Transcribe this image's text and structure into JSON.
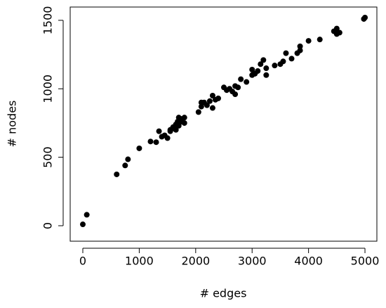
{
  "chart_data": {
    "type": "scatter",
    "xlabel": "# edges",
    "ylabel": "# nodes",
    "color": "#000000",
    "x": [
      0,
      70,
      600,
      750,
      800,
      1000,
      1200,
      1300,
      1350,
      1400,
      1450,
      1500,
      1550,
      1600,
      1620,
      1650,
      1680,
      1700,
      1700,
      1750,
      1750,
      1800,
      1800,
      1650,
      1550,
      2050,
      2100,
      2100,
      2150,
      2200,
      2250,
      2300,
      2300,
      2350,
      2400,
      2500,
      2550,
      2600,
      2650,
      2700,
      2700,
      2750,
      2800,
      2900,
      3000,
      3000,
      3050,
      3100,
      3150,
      3200,
      3250,
      3250,
      3400,
      3500,
      3550,
      3600,
      3700,
      3800,
      3850,
      3850,
      4000,
      4200,
      4450,
      4500,
      4550,
      4500,
      4980,
      5000
    ],
    "values": [
      10,
      80,
      375,
      440,
      485,
      565,
      615,
      610,
      690,
      650,
      660,
      640,
      700,
      720,
      710,
      740,
      760,
      730,
      790,
      780,
      760,
      790,
      750,
      700,
      690,
      830,
      870,
      900,
      900,
      880,
      910,
      950,
      860,
      920,
      930,
      1010,
      990,
      1000,
      980,
      1020,
      960,
      1010,
      1070,
      1050,
      1100,
      1140,
      1110,
      1130,
      1180,
      1210,
      1100,
      1150,
      1170,
      1180,
      1200,
      1260,
      1220,
      1260,
      1310,
      1280,
      1350,
      1360,
      1420,
      1440,
      1410,
      1400,
      1510,
      1520
    ],
    "xlim": [
      -224,
      5211
    ],
    "ylim": [
      -113,
      1597
    ],
    "xticks": [
      0,
      1000,
      2000,
      3000,
      4000,
      5000
    ],
    "yticks": [
      0,
      500,
      1000,
      1500
    ]
  }
}
